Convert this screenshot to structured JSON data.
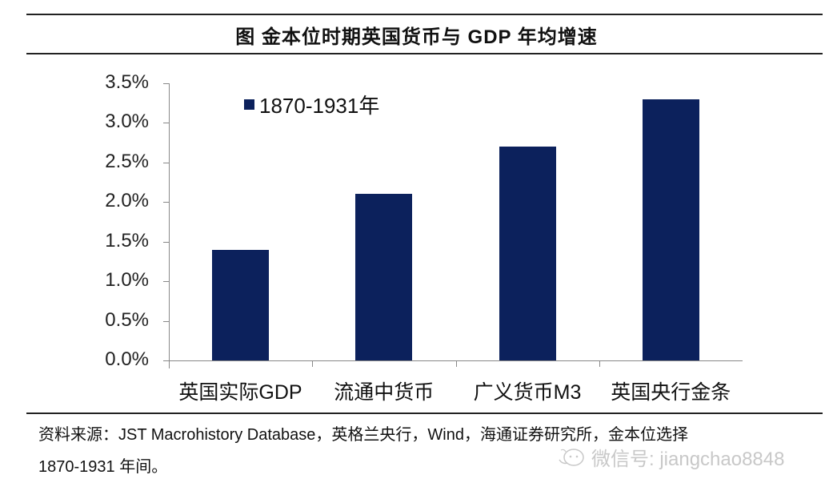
{
  "header": {
    "title": "图  金本位时期英国货币与 GDP 年均增速"
  },
  "chart_data": {
    "type": "bar",
    "title": "图  金本位时期英国货币与 GDP 年均增速",
    "categories": [
      "英国实际GDP",
      "流通中货币",
      "广义货币M3",
      "英国央行金条"
    ],
    "series": [
      {
        "name": "1870-1931年",
        "color": "#0c215c",
        "values": [
          1.4,
          2.1,
          2.7,
          3.3
        ]
      }
    ],
    "xlabel": "",
    "ylabel": "",
    "ylim": [
      0,
      3.5
    ],
    "yticks": [
      "0.0%",
      "0.5%",
      "1.0%",
      "1.5%",
      "2.0%",
      "2.5%",
      "3.0%",
      "3.5%"
    ],
    "legend_position": "top-left inside",
    "grid": false,
    "unit": "%"
  },
  "legend": {
    "label": "1870-1931年"
  },
  "footer": {
    "source_line1": "资料来源：JST Macrohistory Database，英格兰央行，Wind，海通证券研究所，金本位选择",
    "source_line2": "1870-1931 年间。",
    "watermark": "微信号: jiangchao8848"
  }
}
